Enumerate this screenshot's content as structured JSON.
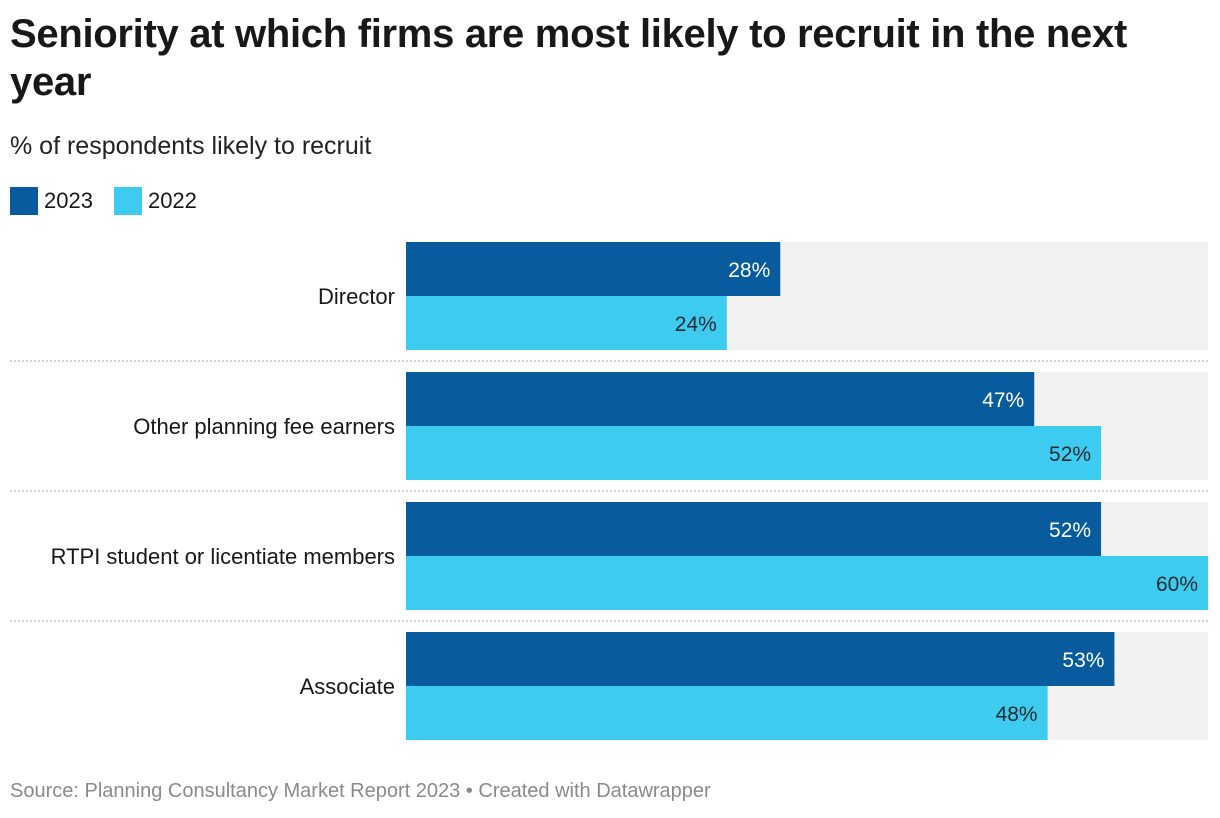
{
  "chart_data": {
    "type": "bar",
    "orientation": "horizontal",
    "title": "Seniority at which firms are most likely to recruit in the next year",
    "subtitle": "% of respondents likely to recruit",
    "categories": [
      "Director",
      "Other planning fee earners",
      "RTPI student or licentiate members",
      "Associate"
    ],
    "series": [
      {
        "name": "2023",
        "values": [
          28,
          47,
          52,
          53
        ],
        "labels": [
          "28%",
          "47%",
          "52%",
          "53%"
        ],
        "color": "#085b9c"
      },
      {
        "name": "2022",
        "values": [
          24,
          52,
          60,
          48
        ],
        "labels": [
          "24%",
          "52%",
          "60%",
          "48%"
        ],
        "color": "#3ecbf0"
      }
    ],
    "xlim": [
      0,
      60
    ],
    "background_bar_color": "#f2f2f2",
    "grid": false,
    "legend_position": "top-left",
    "source": "Source: Planning Consultancy Market Report 2023 • Created with Datawrapper"
  }
}
